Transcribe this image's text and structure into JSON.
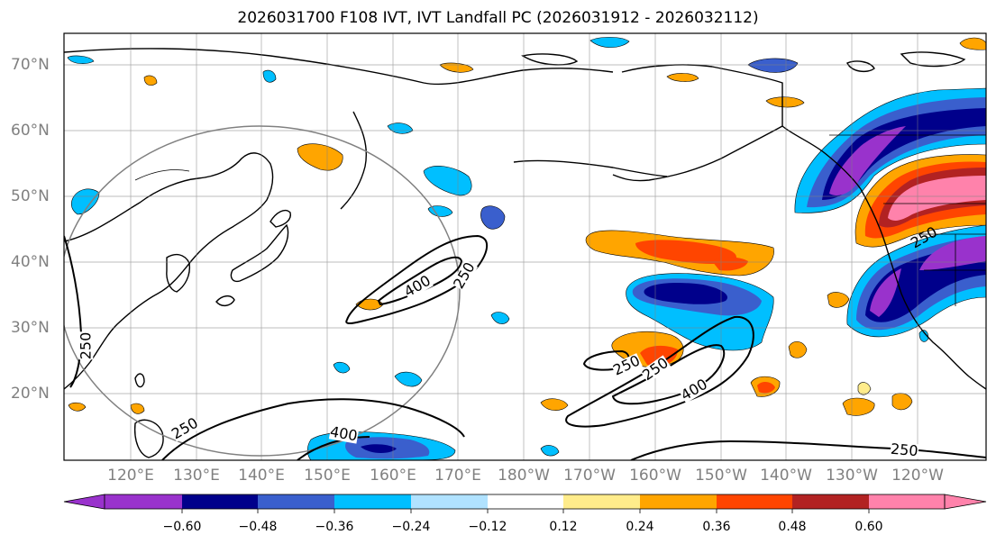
{
  "title": "2026031700 F108 IVT, IVT Landfall PC (2026031912 - 2026032112)",
  "lat_labels": [
    "70°N",
    "60°N",
    "50°N",
    "40°N",
    "30°N",
    "20°N"
  ],
  "lon_labels": [
    "120°E",
    "130°E",
    "140°E",
    "150°E",
    "160°E",
    "170°E",
    "180°W",
    "170°W",
    "160°W",
    "150°W",
    "140°W",
    "130°W",
    "120°W"
  ],
  "contour_labels": {
    "ivt_250": "250",
    "ivt_400": "400"
  },
  "colorbar": {
    "ticks": [
      "−0.60",
      "−0.48",
      "−0.36",
      "−0.24",
      "−0.12",
      "0.12",
      "0.24",
      "0.36",
      "0.48",
      "0.60"
    ],
    "colors": [
      "#9932cc",
      "#00008b",
      "#3a5fcd",
      "#00bfff",
      "#b0e2ff",
      "#ffffff",
      "#ffec8b",
      "#ffa500",
      "#ff4500",
      "#b22222",
      "#ff82ab"
    ]
  }
}
